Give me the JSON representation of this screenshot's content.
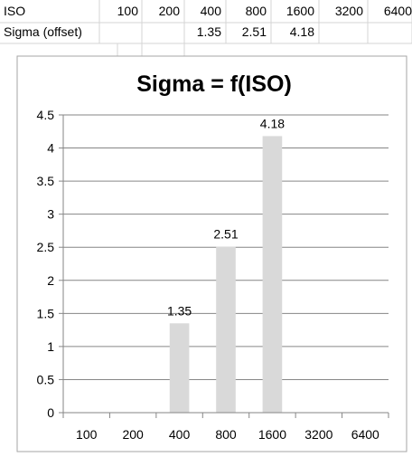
{
  "sheet": {
    "row1": {
      "label": "ISO",
      "values": [
        "100",
        "200",
        "400",
        "800",
        "1600",
        "3200",
        "6400"
      ]
    },
    "row2": {
      "label": "Sigma (offset)",
      "values": [
        "",
        "",
        "1.35",
        "2.51",
        "4.18",
        "",
        ""
      ]
    }
  },
  "chart_data": {
    "type": "bar",
    "title": "Sigma = f(ISO)",
    "categories": [
      "100",
      "200",
      "400",
      "800",
      "1600",
      "3200",
      "6400"
    ],
    "values": [
      null,
      null,
      1.35,
      2.51,
      4.18,
      null,
      null
    ],
    "data_labels": [
      "",
      "",
      "1.35",
      "2.51",
      "4.18",
      "",
      ""
    ],
    "yticks": [
      "0",
      "0.5",
      "1",
      "1.5",
      "2",
      "2.5",
      "3",
      "3.5",
      "4",
      "4.5"
    ],
    "ylim": [
      0,
      4.5
    ],
    "grid": true,
    "legend": "none",
    "bar_color": "#d9d9d9",
    "gridline_color": "#868686"
  }
}
